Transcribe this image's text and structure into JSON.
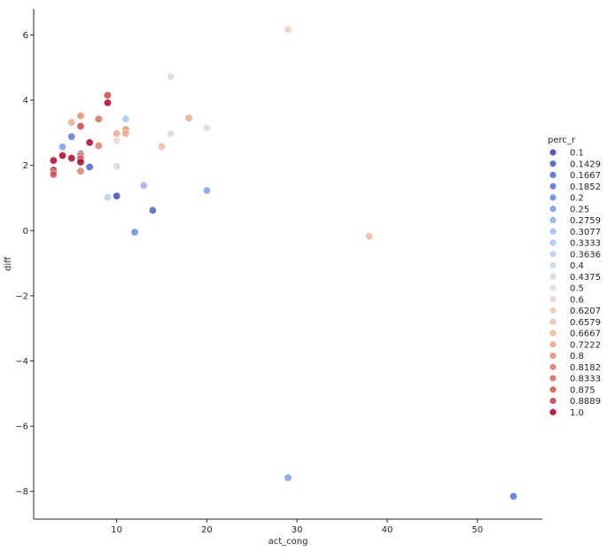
{
  "chart_data": {
    "type": "scatter",
    "xlabel": "act_cong",
    "ylabel": "diff",
    "xlim": [
      0.8,
      57.2
    ],
    "ylim": [
      -8.85,
      6.8
    ],
    "x_ticks": [
      10,
      20,
      30,
      40,
      50
    ],
    "y_ticks": [
      -8,
      -6,
      -4,
      -2,
      0,
      2,
      4,
      6
    ],
    "grid": false,
    "legend": {
      "title": "perc_r",
      "placement": "right",
      "entries": [
        {
          "label": "0.1",
          "color": "#3b4cc0"
        },
        {
          "label": "0.1429",
          "color": "#4b63d0"
        },
        {
          "label": "0.1667",
          "color": "#5470d7"
        },
        {
          "label": "0.1852",
          "color": "#5b7bdd"
        },
        {
          "label": "0.2",
          "color": "#6b8ce6"
        },
        {
          "label": "0.25",
          "color": "#7b9ff2"
        },
        {
          "label": "0.2759",
          "color": "#8db0fe"
        },
        {
          "label": "0.3077",
          "color": "#9ebeff"
        },
        {
          "label": "0.3333",
          "color": "#abc8fd"
        },
        {
          "label": "0.3636",
          "color": "#b9d0f9"
        },
        {
          "label": "0.4",
          "color": "#c9d7f0"
        },
        {
          "label": "0.4375",
          "color": "#d5dbe5"
        },
        {
          "label": "0.5",
          "color": "#dddcdc"
        },
        {
          "label": "0.6",
          "color": "#e8d6cc"
        },
        {
          "label": "0.6207",
          "color": "#eecab3"
        },
        {
          "label": "0.6579",
          "color": "#f2c2a7"
        },
        {
          "label": "0.6667",
          "color": "#f4b99b"
        },
        {
          "label": "0.7222",
          "color": "#f1a686"
        },
        {
          "label": "0.8",
          "color": "#e8906f"
        },
        {
          "label": "0.8182",
          "color": "#e47d66"
        },
        {
          "label": "0.8333",
          "color": "#dc6e5c"
        },
        {
          "label": "0.875",
          "color": "#d55b50"
        },
        {
          "label": "0.8889",
          "color": "#cd4444"
        },
        {
          "label": "1.0",
          "color": "#b40426"
        }
      ]
    },
    "points": [
      {
        "x": 3,
        "y": 2.15,
        "perc_r": "1.0"
      },
      {
        "x": 3,
        "y": 1.85,
        "perc_r": "1.0"
      },
      {
        "x": 3,
        "y": 1.78,
        "perc_r": "0.8889"
      },
      {
        "x": 3,
        "y": 1.72,
        "perc_r": "0.875"
      },
      {
        "x": 4,
        "y": 2.3,
        "perc_r": "1.0"
      },
      {
        "x": 4,
        "y": 2.57,
        "perc_r": "0.25"
      },
      {
        "x": 5,
        "y": 2.22,
        "perc_r": "1.0"
      },
      {
        "x": 5,
        "y": 2.88,
        "perc_r": "0.1852"
      },
      {
        "x": 5,
        "y": 3.32,
        "perc_r": "0.7222"
      },
      {
        "x": 6,
        "y": 3.52,
        "perc_r": "0.8"
      },
      {
        "x": 6,
        "y": 3.2,
        "perc_r": "0.8889"
      },
      {
        "x": 6,
        "y": 2.35,
        "perc_r": "0.1429"
      },
      {
        "x": 6,
        "y": 2.3,
        "perc_r": "0.8182"
      },
      {
        "x": 6,
        "y": 2.2,
        "perc_r": "0.8889"
      },
      {
        "x": 6,
        "y": 2.1,
        "perc_r": "1.0"
      },
      {
        "x": 6,
        "y": 1.82,
        "perc_r": "0.8182"
      },
      {
        "x": 7,
        "y": 2.7,
        "perc_r": "1.0"
      },
      {
        "x": 7,
        "y": 1.95,
        "perc_r": "0.1429"
      },
      {
        "x": 8,
        "y": 3.42,
        "perc_r": "0.8333"
      },
      {
        "x": 8,
        "y": 2.6,
        "perc_r": "0.8182"
      },
      {
        "x": 9,
        "y": 4.15,
        "perc_r": "0.8889"
      },
      {
        "x": 9,
        "y": 3.92,
        "perc_r": "1.0"
      },
      {
        "x": 9,
        "y": 1.02,
        "perc_r": "0.3636"
      },
      {
        "x": 10,
        "y": 2.98,
        "perc_r": "0.7222"
      },
      {
        "x": 10,
        "y": 2.75,
        "perc_r": "0.6"
      },
      {
        "x": 10,
        "y": 1.97,
        "perc_r": "0.4"
      },
      {
        "x": 10,
        "y": 1.06,
        "perc_r": "0.1"
      },
      {
        "x": 11,
        "y": 3.42,
        "perc_r": "0.3333"
      },
      {
        "x": 11,
        "y": 3.1,
        "perc_r": "0.8"
      },
      {
        "x": 11,
        "y": 2.98,
        "perc_r": "0.7222"
      },
      {
        "x": 12,
        "y": -0.05,
        "perc_r": "0.2"
      },
      {
        "x": 13,
        "y": 1.38,
        "perc_r": "0.2759"
      },
      {
        "x": 14,
        "y": 0.62,
        "perc_r": "0.1429"
      },
      {
        "x": 15,
        "y": 2.58,
        "perc_r": "0.6667"
      },
      {
        "x": 16,
        "y": 4.72,
        "perc_r": "0.4375"
      },
      {
        "x": 16,
        "y": 2.97,
        "perc_r": "0.5"
      },
      {
        "x": 18,
        "y": 3.45,
        "perc_r": "0.7222"
      },
      {
        "x": 20,
        "y": 3.15,
        "perc_r": "0.4375"
      },
      {
        "x": 20,
        "y": 1.23,
        "perc_r": "0.25"
      },
      {
        "x": 29,
        "y": 6.17,
        "perc_r": "0.6207"
      },
      {
        "x": 29,
        "y": -7.58,
        "perc_r": "0.25"
      },
      {
        "x": 38,
        "y": -0.18,
        "perc_r": "0.6667"
      },
      {
        "x": 54,
        "y": -8.15,
        "perc_r": "0.1667"
      }
    ]
  }
}
